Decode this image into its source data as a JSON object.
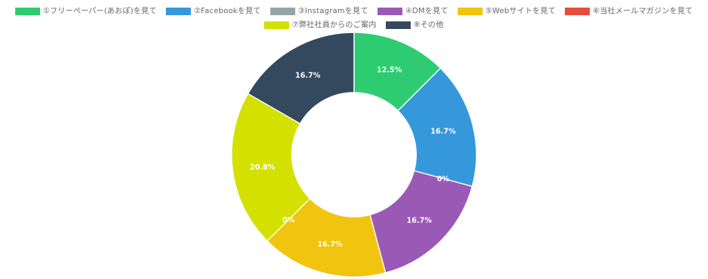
{
  "chart_data": {
    "type": "pie",
    "variant": "doughnut",
    "legend_position": "top",
    "categories": [
      "①フリーペーパー(あおぽ)を見て",
      "②Facebookを見て",
      "③Instagramを見て",
      "④DMを見て",
      "⑤Webサイトを見て",
      "⑥当社メールマガジンを見て",
      "⑦弊社社員からのご案内",
      "⑧その他"
    ],
    "values": [
      12.5,
      16.7,
      0,
      16.7,
      16.7,
      0,
      20.8,
      16.7
    ],
    "labels": [
      "12.5%",
      "16.7%",
      "0%",
      "16.7%",
      "16.7%",
      "0%",
      "20.8%",
      "16.7%"
    ],
    "colors": [
      "#2ecc71",
      "#3498db",
      "#95a5a6",
      "#9b59b6",
      "#f1c40f",
      "#e74c3c",
      "#d4e000",
      "#34495e"
    ]
  }
}
